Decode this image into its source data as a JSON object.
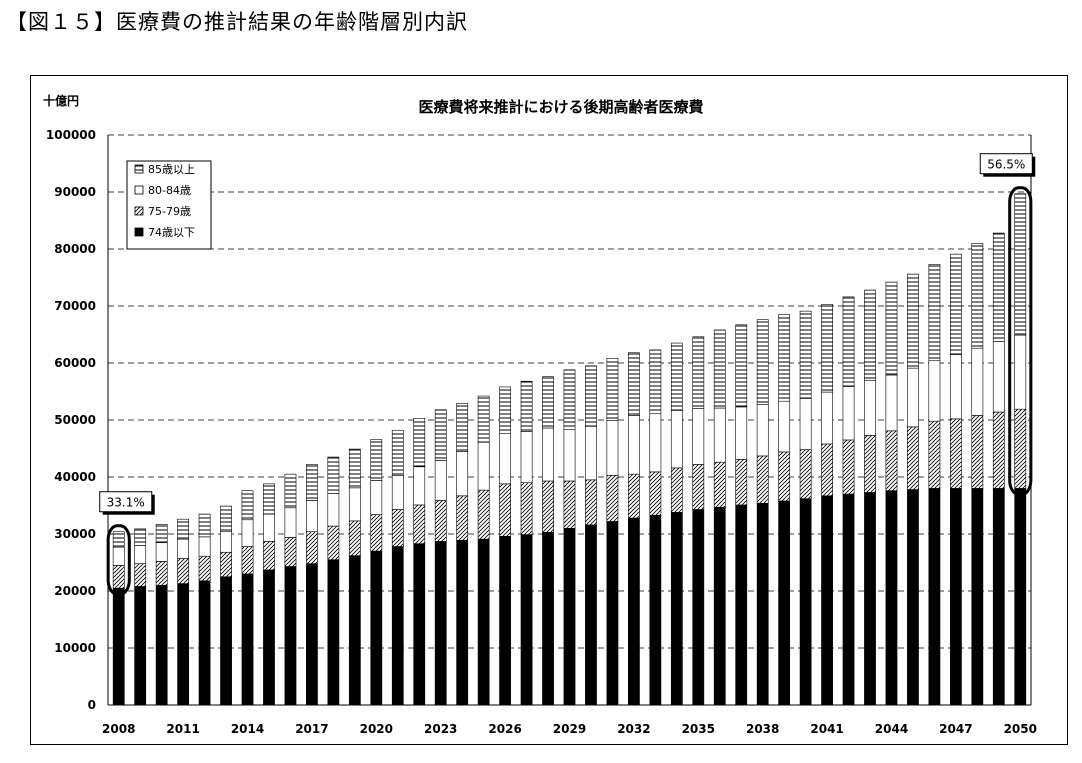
{
  "heading": "【図１５】医療費の推計結果の年齢階層別内訳",
  "chart_data": {
    "type": "bar",
    "stacked": true,
    "title": "医療費将来推計における後期高齢者医療費",
    "ylabel": "十億円",
    "xlabel": "",
    "ylim": [
      0,
      100000
    ],
    "yticks": [
      "0",
      "10000",
      "20000",
      "30000",
      "40000",
      "50000",
      "60000",
      "70000",
      "80000",
      "90000",
      "100000"
    ],
    "xtick_labels": [
      "2008",
      "2011",
      "2014",
      "2017",
      "2020",
      "2023",
      "2026",
      "2029",
      "2032",
      "2035",
      "2038",
      "2041",
      "2044",
      "2047",
      "2050"
    ],
    "categories": [
      2008,
      2009,
      2010,
      2011,
      2012,
      2013,
      2014,
      2015,
      2016,
      2017,
      2018,
      2019,
      2020,
      2021,
      2022,
      2023,
      2024,
      2025,
      2026,
      2027,
      2028,
      2029,
      2030,
      2031,
      2032,
      2033,
      2034,
      2035,
      2036,
      2037,
      2038,
      2039,
      2040,
      2041,
      2042,
      2043,
      2044,
      2045,
      2046,
      2047,
      2048,
      2049,
      2050
    ],
    "series": [
      {
        "name": "74歳以下",
        "pattern": "solid-black",
        "values": [
          20500,
          20800,
          21000,
          21300,
          21800,
          22500,
          23000,
          23700,
          24300,
          24800,
          25500,
          26200,
          27000,
          27800,
          28300,
          28700,
          28900,
          29100,
          29600,
          29900,
          30300,
          31000,
          31600,
          32200,
          32800,
          33300,
          33800,
          34300,
          34700,
          35100,
          35400,
          35800,
          36200,
          36700,
          37000,
          37300,
          37600,
          37800,
          38000,
          38000,
          38000,
          38000,
          38000
        ]
      },
      {
        "name": "75-79歳",
        "pattern": "diagonal",
        "values": [
          4000,
          4000,
          4200,
          4400,
          4300,
          4300,
          4800,
          5000,
          5100,
          5600,
          5900,
          6100,
          6400,
          6500,
          6800,
          7200,
          7800,
          8600,
          9200,
          9100,
          9000,
          8300,
          7900,
          8100,
          7700,
          7600,
          7800,
          7900,
          7900,
          8000,
          8300,
          8600,
          8600,
          9100,
          9500,
          10000,
          10500,
          11000,
          11800,
          12200,
          12800,
          13400,
          13900
        ]
      },
      {
        "name": "80-84歳",
        "pattern": "white",
        "values": [
          3200,
          3200,
          3300,
          3400,
          3400,
          3600,
          4700,
          4800,
          5200,
          5500,
          5700,
          5800,
          6000,
          6000,
          6700,
          7000,
          7800,
          8400,
          8800,
          9000,
          9300,
          9000,
          9400,
          9600,
          10300,
          10200,
          10100,
          9800,
          9500,
          9200,
          9000,
          8900,
          9000,
          9100,
          9400,
          9600,
          9800,
          10300,
          10600,
          11300,
          11800,
          12400,
          13000
        ]
      },
      {
        "name": "85歳以上",
        "pattern": "horizontal",
        "values": [
          2700,
          2900,
          3200,
          3500,
          4000,
          4500,
          5100,
          5300,
          5900,
          6300,
          6400,
          6800,
          7200,
          7900,
          8500,
          8900,
          8400,
          8100,
          8200,
          8800,
          9000,
          10500,
          10600,
          10900,
          11000,
          11200,
          11800,
          12600,
          13700,
          14400,
          14900,
          15200,
          15300,
          15400,
          15700,
          15900,
          16300,
          16500,
          16900,
          17600,
          18400,
          19000,
          24800
        ]
      }
    ],
    "legend": [
      "85歳以上",
      "80-84歳",
      "75-79歳",
      "74歳以下"
    ],
    "legend_position": "top-left",
    "grid": "dashed-horizontal",
    "annotations": [
      {
        "category": 2008,
        "text": "33.1%"
      },
      {
        "category": 2050,
        "text": "56.5%"
      }
    ]
  }
}
